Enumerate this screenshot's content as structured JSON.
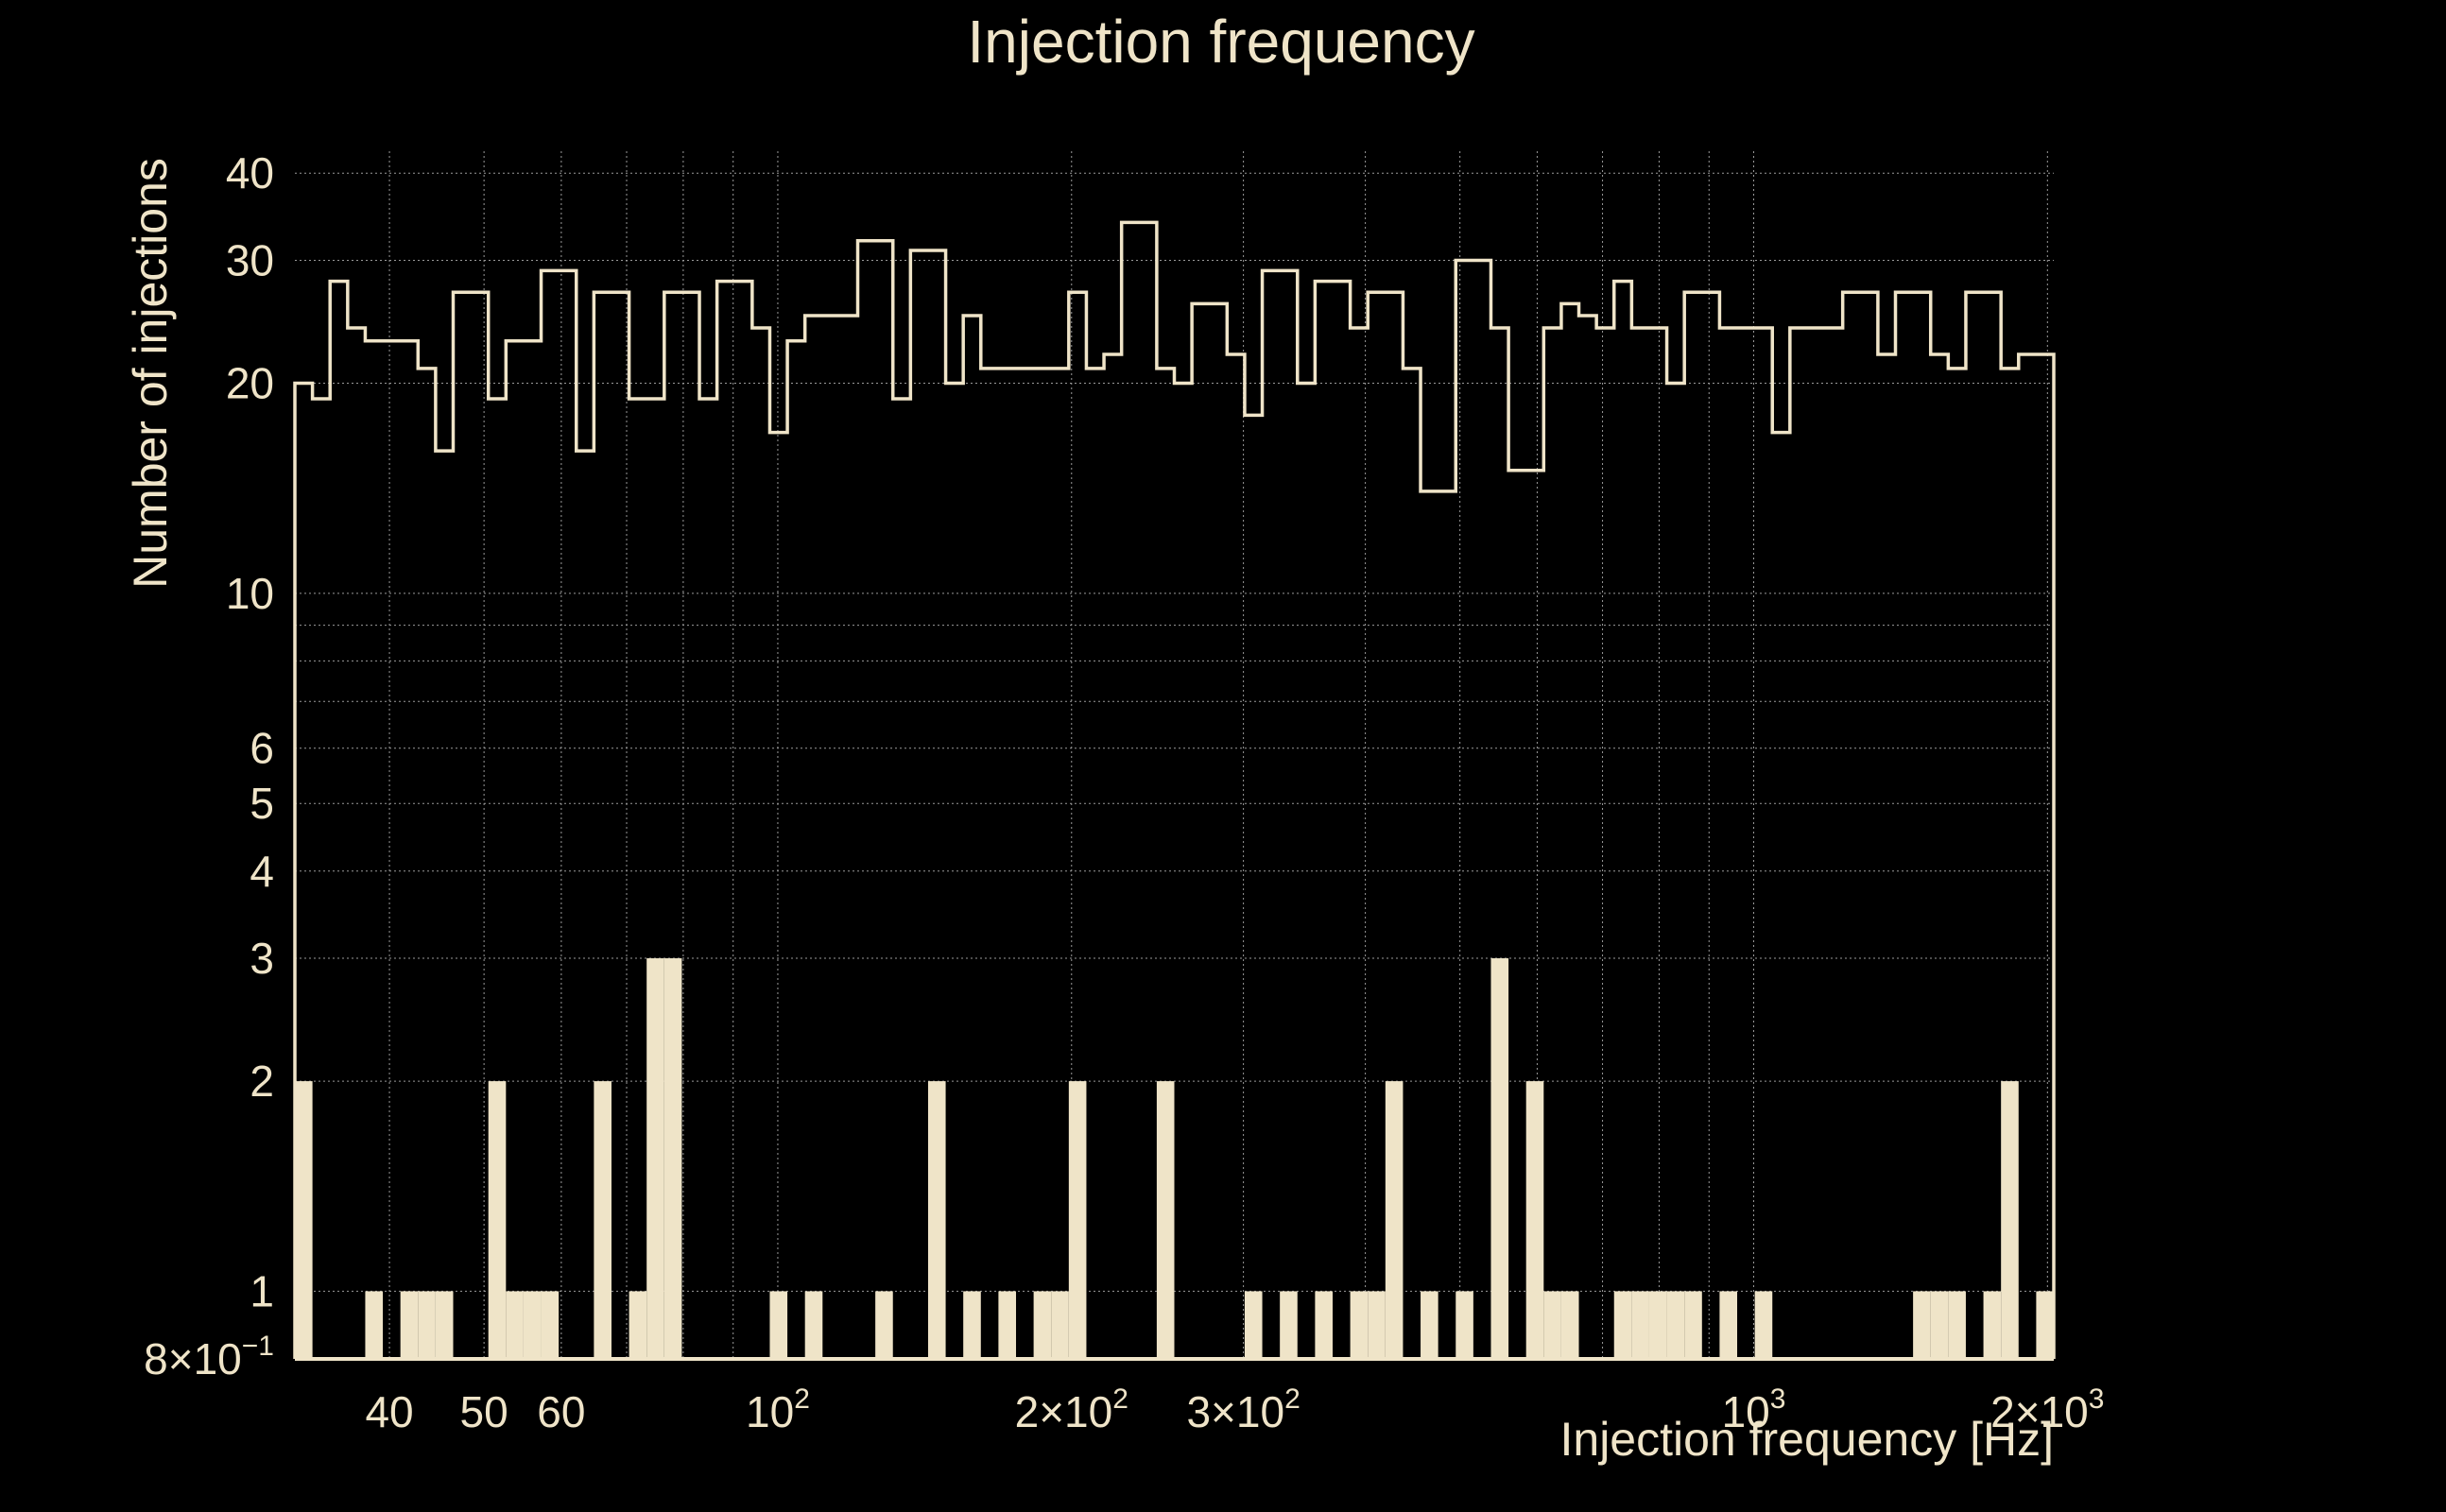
{
  "colors": {
    "background": "#000000",
    "foreground": "#efe4c8",
    "grid": "#9a9a9a"
  },
  "chart_data": {
    "type": "bar",
    "title": "Injection frequency",
    "xlabel": "Injection frequency [Hz]",
    "ylabel": "Number of injections",
    "xscale": "log",
    "yscale": "log",
    "xlim": [
      32,
      2030
    ],
    "ylim": [
      0.8,
      43
    ],
    "grid": true,
    "legend": "none",
    "x_ticks": [
      {
        "value": 40,
        "label": "40"
      },
      {
        "value": 50,
        "label": "50"
      },
      {
        "value": 60,
        "label": "60"
      },
      {
        "value": 100,
        "label": "10",
        "sup": "2"
      },
      {
        "value": 200,
        "label": "2×10",
        "sup": "2"
      },
      {
        "value": 300,
        "label": "3×10",
        "sup": "2"
      },
      {
        "value": 1000,
        "label": "10",
        "sup": "3"
      },
      {
        "value": 2000,
        "label": "2×10",
        "sup": "3"
      }
    ],
    "y_ticks": [
      {
        "value": 0.8,
        "label": "8×10",
        "sup": "−1"
      },
      {
        "value": 1,
        "label": "1"
      },
      {
        "value": 2,
        "label": "2"
      },
      {
        "value": 3,
        "label": "3"
      },
      {
        "value": 4,
        "label": "4"
      },
      {
        "value": 5,
        "label": "5"
      },
      {
        "value": 6,
        "label": "6"
      },
      {
        "value": 10,
        "label": "10"
      },
      {
        "value": 20,
        "label": "20"
      },
      {
        "value": 30,
        "label": "30"
      },
      {
        "value": 40,
        "label": "40"
      }
    ],
    "bins": {
      "log_start": 32,
      "log_end": 2030,
      "count": 100
    },
    "series": [
      {
        "style": "step-outline",
        "values": [
          20,
          19,
          28,
          24,
          23,
          23,
          23,
          21,
          16,
          27,
          27,
          19,
          23,
          23,
          29,
          29,
          16,
          27,
          27,
          19,
          19,
          27,
          27,
          19,
          28,
          28,
          24,
          17,
          23,
          25,
          25,
          25,
          32,
          32,
          19,
          31,
          31,
          20,
          25,
          21,
          21,
          21,
          21,
          21,
          27,
          21,
          22,
          34,
          34,
          21,
          20,
          26,
          26,
          22,
          18,
          29,
          29,
          20,
          28,
          28,
          24,
          27,
          27,
          21,
          14,
          14,
          30,
          30,
          24,
          15,
          15,
          24,
          26,
          25,
          24,
          28,
          24,
          24,
          20,
          27,
          27,
          24,
          24,
          24,
          17,
          24,
          24,
          24,
          27,
          27,
          22,
          27,
          27,
          22,
          21,
          27,
          27,
          21,
          22,
          22
        ]
      },
      {
        "style": "filled-bars",
        "values": [
          2,
          0,
          0,
          0,
          1,
          0,
          1,
          1,
          1,
          0,
          0,
          2,
          1,
          1,
          1,
          0,
          0,
          2,
          0,
          1,
          3,
          3,
          0,
          0,
          0,
          0,
          0,
          1,
          0,
          1,
          0,
          0,
          0,
          1,
          0,
          0,
          2,
          0,
          1,
          0,
          1,
          0,
          1,
          1,
          2,
          0,
          0,
          0,
          0,
          2,
          0,
          0,
          0,
          0,
          1,
          0,
          1,
          0,
          1,
          0,
          1,
          1,
          2,
          0,
          1,
          0,
          1,
          0,
          3,
          0,
          2,
          1,
          1,
          0,
          0,
          1,
          1,
          1,
          1,
          1,
          0,
          1,
          0,
          1,
          0,
          0,
          0,
          0,
          0,
          0,
          0,
          0,
          1,
          1,
          1,
          0,
          1,
          2,
          0,
          1
        ]
      }
    ]
  }
}
